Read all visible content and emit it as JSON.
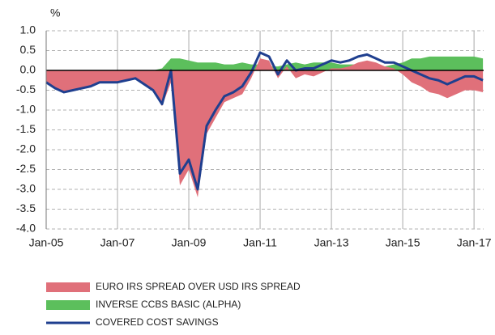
{
  "chart_data": {
    "type": "area_line",
    "ylabel": "%",
    "x": [
      2005.0,
      2005.25,
      2005.5,
      2005.75,
      2006.0,
      2006.25,
      2006.5,
      2006.75,
      2007.0,
      2007.25,
      2007.5,
      2007.75,
      2008.0,
      2008.25,
      2008.5,
      2008.75,
      2009.0,
      2009.25,
      2009.5,
      2009.75,
      2010.0,
      2010.25,
      2010.5,
      2010.75,
      2011.0,
      2011.25,
      2011.5,
      2011.75,
      2012.0,
      2012.25,
      2012.5,
      2012.75,
      2013.0,
      2013.25,
      2013.5,
      2013.75,
      2014.0,
      2014.25,
      2014.5,
      2014.75,
      2015.0,
      2015.25,
      2015.5,
      2015.75,
      2016.0,
      2016.25,
      2016.5,
      2016.75,
      2017.0,
      2017.25
    ],
    "series": [
      {
        "name": "EURO IRS SPREAD OVER USD IRS SPREAD",
        "color": "#e0707a",
        "kind": "area",
        "values": [
          -0.3,
          -0.45,
          -0.55,
          -0.5,
          -0.45,
          -0.4,
          -0.3,
          -0.3,
          -0.3,
          -0.25,
          -0.2,
          -0.35,
          -0.5,
          -0.9,
          -0.3,
          -2.9,
          -2.5,
          -3.2,
          -1.6,
          -1.2,
          -0.8,
          -0.7,
          -0.6,
          -0.2,
          0.3,
          0.25,
          -0.2,
          0.1,
          -0.2,
          -0.1,
          -0.15,
          -0.05,
          0.05,
          0.05,
          0.1,
          0.2,
          0.25,
          0.2,
          0.1,
          0.05,
          -0.1,
          -0.3,
          -0.4,
          -0.55,
          -0.6,
          -0.7,
          -0.6,
          -0.5,
          -0.5,
          -0.55
        ]
      },
      {
        "name": "INVERSE CCBS BASIC (ALPHA)",
        "color": "#5cbf5c",
        "kind": "area",
        "values": [
          0,
          0,
          0,
          0,
          0,
          0,
          0,
          0,
          0,
          0,
          0,
          0,
          0,
          0.05,
          0.3,
          0.3,
          0.25,
          0.2,
          0.2,
          0.2,
          0.15,
          0.15,
          0.2,
          0.15,
          0.15,
          0.1,
          0.1,
          0.15,
          0.2,
          0.15,
          0.2,
          0.2,
          0.2,
          0.15,
          0.15,
          0.15,
          0.15,
          0.1,
          0.1,
          0.15,
          0.2,
          0.3,
          0.3,
          0.35,
          0.35,
          0.35,
          0.35,
          0.35,
          0.35,
          0.3
        ]
      },
      {
        "name": "COVERED COST SAVINGS",
        "color": "#1f3f8f",
        "kind": "line",
        "values": [
          -0.3,
          -0.45,
          -0.55,
          -0.5,
          -0.45,
          -0.4,
          -0.3,
          -0.3,
          -0.3,
          -0.25,
          -0.2,
          -0.35,
          -0.5,
          -0.85,
          0.0,
          -2.6,
          -2.25,
          -3.0,
          -1.4,
          -1.0,
          -0.65,
          -0.55,
          -0.4,
          -0.05,
          0.45,
          0.35,
          -0.1,
          0.25,
          0.0,
          0.05,
          0.05,
          0.15,
          0.25,
          0.2,
          0.25,
          0.35,
          0.4,
          0.3,
          0.2,
          0.2,
          0.1,
          0.0,
          -0.1,
          -0.2,
          -0.25,
          -0.35,
          -0.25,
          -0.15,
          -0.15,
          -0.25
        ]
      }
    ],
    "xlim": [
      2005.0,
      2017.27
    ],
    "xticks": [
      {
        "value": 2005,
        "label": "Jan-05"
      },
      {
        "value": 2007,
        "label": "Jan-07"
      },
      {
        "value": 2009,
        "label": "Jan-09"
      },
      {
        "value": 2011,
        "label": "Jan-11"
      },
      {
        "value": 2013,
        "label": "Jan-13"
      },
      {
        "value": 2015,
        "label": "Jan-15"
      },
      {
        "value": 2017,
        "label": "Jan-17"
      }
    ],
    "ylim": [
      -4.0,
      1.0
    ],
    "yticks": [
      {
        "value": 1,
        "label": "1.0"
      },
      0.5,
      {
        "value": 0,
        "label": "0.0"
      },
      -0.5,
      {
        "value": -1,
        "label": "-1.0"
      },
      -1.5,
      {
        "value": -2,
        "label": "-2.0"
      },
      -2.5,
      {
        "value": -3,
        "label": "-3.0"
      },
      -3.5,
      {
        "value": -4,
        "label": "-4.0"
      }
    ],
    "grid": true
  }
}
